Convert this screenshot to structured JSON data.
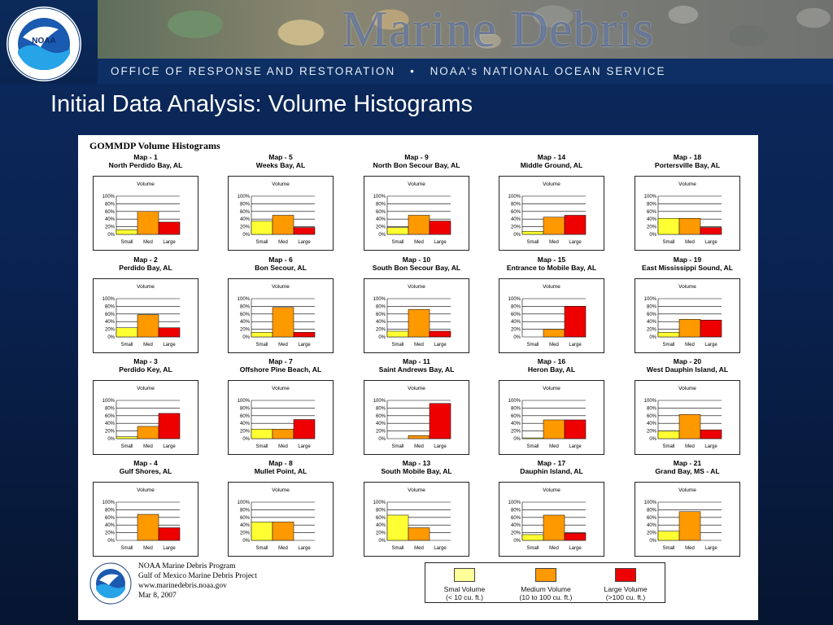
{
  "header": {
    "banner_title": "Marine Debris",
    "office": "OFFICE OF RESPONSE AND RESTORATION",
    "separator": "•",
    "service": "NOAA's NATIONAL OCEAN SERVICE",
    "logo_text": "NOAA",
    "logo_ring_text": "NATIONAL OCEANIC AND ATMOSPHERIC ADMINISTRATION • U.S. DEPARTMENT OF COMMERCE •"
  },
  "slide": {
    "title": "Initial Data Analysis: Volume Histograms"
  },
  "poster": {
    "heading": "GOMMDP Volume Histograms",
    "chart_title": "Volume",
    "y_ticks": [
      "100%",
      "80%",
      "60%",
      "40%",
      "20%",
      "0%"
    ],
    "categories": [
      "Small",
      "Med",
      "Large"
    ],
    "colors": {
      "small": "#ffff33",
      "medium": "#ff9900",
      "large": "#ee0000"
    }
  },
  "chart_data": [
    {
      "type": "bar",
      "map": "Map - 1",
      "place": "North Perdido Bay, AL",
      "title": "Volume",
      "categories": [
        "Small",
        "Med",
        "Large"
      ],
      "values": [
        12,
        60,
        32
      ],
      "ylim": [
        0,
        100
      ]
    },
    {
      "type": "bar",
      "map": "Map - 5",
      "place": "Weeks Bay, AL",
      "title": "Volume",
      "categories": [
        "Small",
        "Med",
        "Large"
      ],
      "values": [
        35,
        50,
        18
      ],
      "ylim": [
        0,
        100
      ]
    },
    {
      "type": "bar",
      "map": "Map - 9",
      "place": "North Bon Secour Bay, AL",
      "title": "Volume",
      "categories": [
        "Small",
        "Med",
        "Large"
      ],
      "values": [
        18,
        50,
        35
      ],
      "ylim": [
        0,
        100
      ]
    },
    {
      "type": "bar",
      "map": "Map - 14",
      "place": "Middle Ground, AL",
      "title": "Volume",
      "categories": [
        "Small",
        "Med",
        "Large"
      ],
      "values": [
        8,
        45,
        50
      ],
      "ylim": [
        0,
        100
      ]
    },
    {
      "type": "bar",
      "map": "Map - 18",
      "place": "Portersville Bay, AL",
      "title": "Volume",
      "categories": [
        "Small",
        "Med",
        "Large"
      ],
      "values": [
        42,
        42,
        18
      ],
      "ylim": [
        0,
        100
      ]
    },
    {
      "type": "bar",
      "map": "Map - 2",
      "place": "Perdido Bay, AL",
      "title": "Volume",
      "categories": [
        "Small",
        "Med",
        "Large"
      ],
      "values": [
        24,
        58,
        24
      ],
      "ylim": [
        0,
        100
      ]
    },
    {
      "type": "bar",
      "map": "Map - 6",
      "place": "Bon Secour, AL",
      "title": "Volume",
      "categories": [
        "Small",
        "Med",
        "Large"
      ],
      "values": [
        12,
        77,
        12
      ],
      "ylim": [
        0,
        100
      ]
    },
    {
      "type": "bar",
      "map": "Map - 10",
      "place": "South Bon Secour Bay, AL",
      "title": "Volume",
      "categories": [
        "Small",
        "Med",
        "Large"
      ],
      "values": [
        15,
        72,
        15
      ],
      "ylim": [
        0,
        100
      ]
    },
    {
      "type": "bar",
      "map": "Map - 15",
      "place": "Entrance to Mobile Bay, AL",
      "title": "Volume",
      "categories": [
        "Small",
        "Med",
        "Large"
      ],
      "values": [
        0,
        20,
        80
      ],
      "ylim": [
        0,
        100
      ]
    },
    {
      "type": "bar",
      "map": "Map - 19",
      "place": "East Mississippi Sound, AL",
      "title": "Volume",
      "categories": [
        "Small",
        "Med",
        "Large"
      ],
      "values": [
        12,
        46,
        44
      ],
      "ylim": [
        0,
        100
      ]
    },
    {
      "type": "bar",
      "map": "Map - 3",
      "place": "Perdido Key, AL",
      "title": "Volume",
      "categories": [
        "Small",
        "Med",
        "Large"
      ],
      "values": [
        5,
        32,
        66
      ],
      "ylim": [
        0,
        100
      ]
    },
    {
      "type": "bar",
      "map": "Map - 7",
      "place": "Offshore Pine Beach, AL",
      "title": "Volume",
      "categories": [
        "Small",
        "Med",
        "Large"
      ],
      "values": [
        25,
        25,
        50
      ],
      "ylim": [
        0,
        100
      ]
    },
    {
      "type": "bar",
      "map": "Map - 11",
      "place": "Saint Andrews Bay, AL",
      "title": "Volume",
      "categories": [
        "Small",
        "Med",
        "Large"
      ],
      "values": [
        0,
        8,
        92
      ],
      "ylim": [
        0,
        100
      ]
    },
    {
      "type": "bar",
      "map": "Map - 16",
      "place": "Heron Bay, AL",
      "title": "Volume",
      "categories": [
        "Small",
        "Med",
        "Large"
      ],
      "values": [
        2,
        49,
        49
      ],
      "ylim": [
        0,
        100
      ]
    },
    {
      "type": "bar",
      "map": "Map - 20",
      "place": "West Dauphin Island, AL",
      "title": "Volume",
      "categories": [
        "Small",
        "Med",
        "Large"
      ],
      "values": [
        20,
        63,
        23
      ],
      "ylim": [
        0,
        100
      ]
    },
    {
      "type": "bar",
      "map": "Map - 4",
      "place": "Gulf Shores, AL",
      "title": "Volume",
      "categories": [
        "Small",
        "Med",
        "Large"
      ],
      "values": [
        0,
        68,
        33
      ],
      "ylim": [
        0,
        100
      ]
    },
    {
      "type": "bar",
      "map": "Map - 8",
      "place": "Mullet Point, AL",
      "title": "Volume",
      "categories": [
        "Small",
        "Med",
        "Large"
      ],
      "values": [
        48,
        48,
        0
      ],
      "ylim": [
        0,
        100
      ]
    },
    {
      "type": "bar",
      "map": "Map - 13",
      "place": "South Mobile Bay, AL",
      "title": "Volume",
      "categories": [
        "Small",
        "Med",
        "Large"
      ],
      "values": [
        66,
        33,
        0
      ],
      "ylim": [
        0,
        100
      ]
    },
    {
      "type": "bar",
      "map": "Map - 17",
      "place": "Dauphin Island, AL",
      "title": "Volume",
      "categories": [
        "Small",
        "Med",
        "Large"
      ],
      "values": [
        15,
        66,
        19
      ],
      "ylim": [
        0,
        100
      ]
    },
    {
      "type": "bar",
      "map": "Map - 21",
      "place": "Grand Bay, MS - AL",
      "title": "Volume",
      "categories": [
        "Small",
        "Med",
        "Large"
      ],
      "values": [
        24,
        75,
        0
      ],
      "ylim": [
        0,
        100
      ]
    }
  ],
  "legend": [
    {
      "name": "Smal Volume",
      "range": "(< 10 cu. ft.)",
      "color": "#ffff99"
    },
    {
      "name": "Medium Volume",
      "range": "(10 to 100 cu. ft.)",
      "color": "#ff9900"
    },
    {
      "name": "Large Volume",
      "range": "(>100 cu. ft.)",
      "color": "#ee0000"
    }
  ],
  "footer": {
    "line1": "NOAA Marine Debris Program",
    "line2": "Gulf of Mexico Marine Debris Project",
    "line3": "www.marinedebris.noaa.gov",
    "line4": "Mar 8, 2007"
  }
}
